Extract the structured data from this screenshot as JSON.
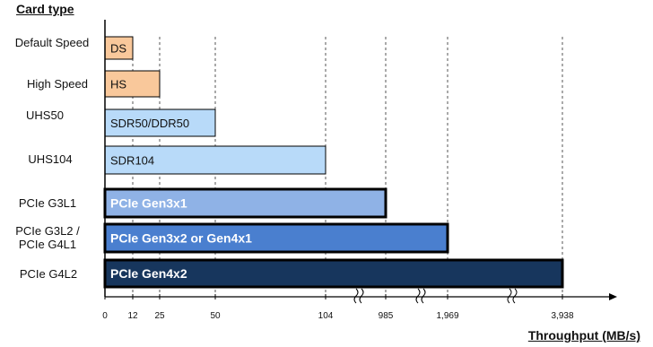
{
  "chart_data": {
    "type": "bar",
    "orientation": "horizontal",
    "title": "Card type",
    "xlabel": "Throughput (MB/s)",
    "ylabel": "",
    "axis_break": true,
    "xticks": [
      "0",
      "12",
      "25",
      "50",
      "104",
      "985",
      "1,969",
      "3,938"
    ],
    "categories": [
      "Default Speed",
      "High Speed",
      "UHS50",
      "UHS104",
      "PCIe G3L1",
      "PCIe G3L2 / PCIe G4L1",
      "PCIe G4L2"
    ],
    "category_lines": [
      [
        "Default Speed"
      ],
      [
        "High Speed"
      ],
      [
        "UHS50"
      ],
      [
        "UHS104"
      ],
      [
        "PCIe G3L1"
      ],
      [
        "PCIe G3L2 /",
        "PCIe G4L1"
      ],
      [
        "PCIe G4L2"
      ]
    ],
    "bar_labels": [
      "DS",
      "HS",
      "SDR50/DDR50",
      "SDR104",
      "PCIe Gen3x1",
      "PCIe Gen3x2 or Gen4x1",
      "PCIe Gen4x2"
    ],
    "values": [
      12,
      25,
      50,
      104,
      985,
      1969,
      3938
    ],
    "grid": "dashed vertical lines at ticks",
    "legend": "none",
    "colors": {
      "ds": "#f9c89b",
      "hs": "#f9c89b",
      "uhs50": "#b8daf9",
      "uhs104": "#b8daf9",
      "g3l1": "#8fb2e6",
      "g3l2": "#4a7fcf",
      "g4l2": "#17365d"
    }
  }
}
